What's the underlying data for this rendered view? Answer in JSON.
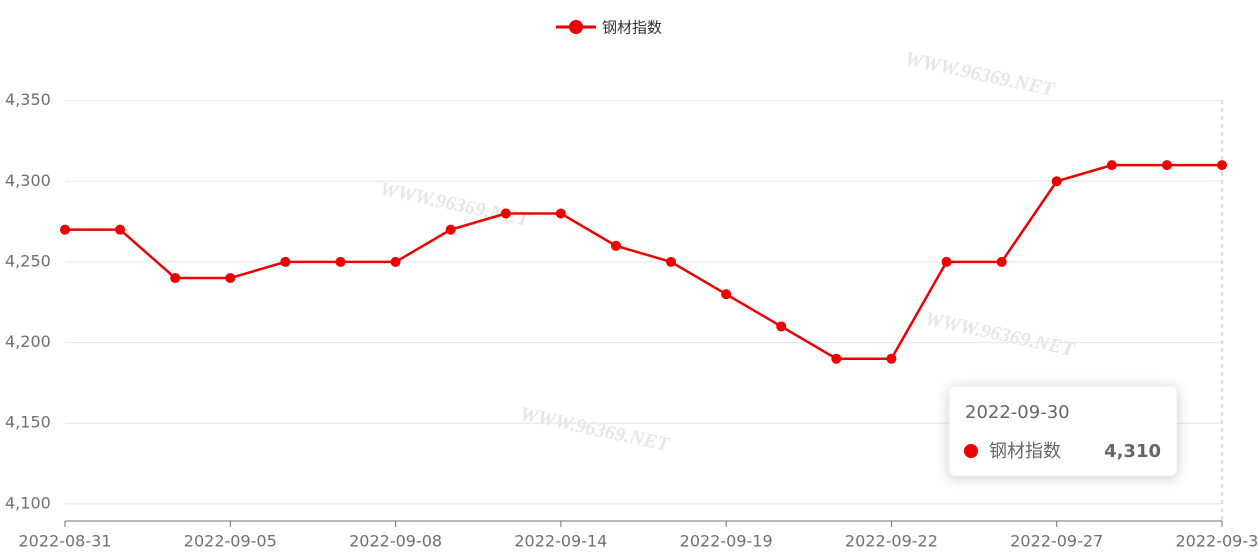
{
  "chart_data": {
    "type": "line",
    "categories": [
      "2022-08-31",
      null,
      null,
      "2022-09-05",
      null,
      null,
      "2022-09-08",
      null,
      null,
      "2022-09-14",
      null,
      null,
      "2022-09-19",
      null,
      null,
      "2022-09-22",
      null,
      null,
      "2022-09-27",
      null,
      null,
      "2022-09-30"
    ],
    "series": [
      {
        "name": "钢材指数",
        "color": "#ee0000",
        "values": [
          4270,
          4270,
          4240,
          4240,
          4250,
          4250,
          4250,
          4270,
          4280,
          4280,
          4260,
          4250,
          4230,
          4210,
          4190,
          4190,
          4250,
          4250,
          4300,
          4310,
          4310,
          4310
        ],
        "value_labels": [
          null,
          null,
          null,
          null,
          null,
          null,
          null,
          null,
          null,
          null,
          null,
          null,
          null,
          null,
          null,
          null,
          null,
          null,
          null,
          null,
          null,
          "4,310"
        ]
      }
    ],
    "ylim": [
      4089.4,
      4350
    ],
    "yticks": [
      {
        "value": 4100,
        "label": "4,100"
      },
      {
        "value": 4150,
        "label": "4,150"
      },
      {
        "value": 4200,
        "label": "4,200"
      },
      {
        "value": 4250,
        "label": "4,250"
      },
      {
        "value": 4300,
        "label": "4,300"
      },
      {
        "value": 4350,
        "label": "4,350"
      }
    ],
    "grid": true,
    "legend": "top",
    "watermark": "WWW.96369.NET"
  }
}
